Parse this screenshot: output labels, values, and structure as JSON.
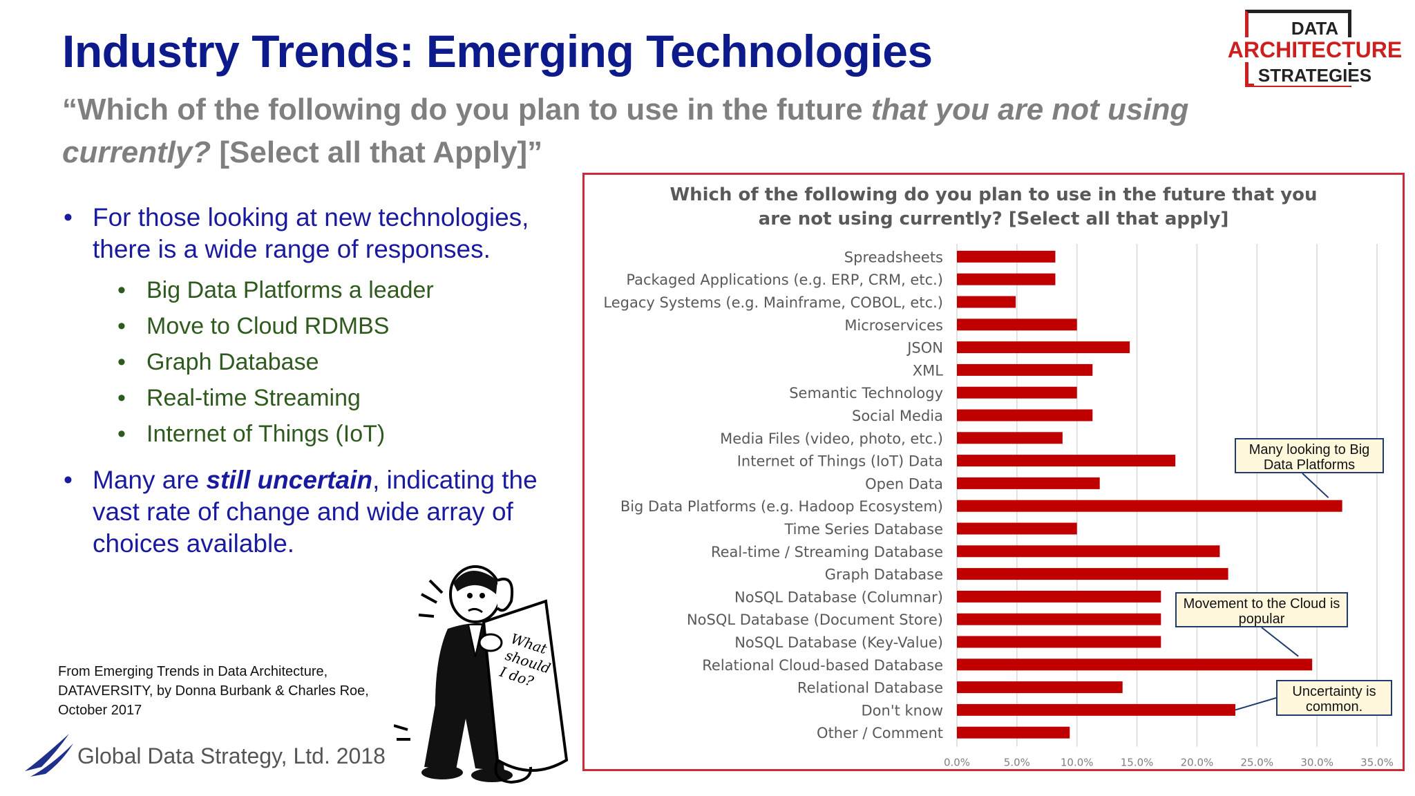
{
  "slide": {
    "title": "Industry Trends: Emerging Technologies",
    "question_part1": "“Which of the following do you plan to use in the future",
    "question_italic": "that you are not using currently?",
    "question_part2": "[Select all that Apply]”"
  },
  "logo": {
    "line1": "DATA",
    "line2": "ARCHITECTURE",
    "line3": "STRATEGIES"
  },
  "bullets": {
    "first": "For those looking at new technologies, there is a wide range of responses.",
    "subitems": [
      "Big Data Platforms a leader",
      "Move to Cloud RDMBS",
      "Graph Database",
      "Real-time Streaming",
      "Internet of Things (IoT)"
    ],
    "second_pre": "Many are ",
    "second_emph": "still uncertain",
    "second_post": ", indicating the vast rate of change and wide array of choices available."
  },
  "cartoon": {
    "sign_line1": "What",
    "sign_line2": "should",
    "sign_line3": "I do?"
  },
  "source_lines": [
    "From Emerging Trends in Data Architecture,",
    "DATAVERSITY, by Donna Burbank & Charles Roe,",
    "October 2017"
  ],
  "footer": {
    "company": "Global Data Strategy, Ltd. 2018"
  },
  "callouts": {
    "big_data": "Many looking to Big Data Platforms",
    "cloud": "Movement to the Cloud is popular",
    "uncertainty": "Uncertainty is common."
  },
  "colors": {
    "title": "#0d1a8c",
    "bar": "#c00000",
    "frame": "#cc2a36",
    "subbullet": "#2f5a1e"
  },
  "chart_data": {
    "type": "bar",
    "orientation": "horizontal",
    "title": "Which of the following do you plan to use in the future that you are not using currently? [Select all that apply]",
    "categories": [
      "Spreadsheets",
      "Packaged Applications (e.g. ERP, CRM, etc.)",
      "Legacy Systems (e.g. Mainframe, COBOL, etc.)",
      "Microservices",
      "JSON",
      "XML",
      "Semantic Technology",
      "Social Media",
      "Media Files (video, photo, etc.)",
      "Internet of Things (IoT) Data",
      "Open Data",
      "Big Data Platforms (e.g. Hadoop Ecosystem)",
      "Time Series Database",
      "Real-time / Streaming Database",
      "Graph Database",
      "NoSQL Database (Columnar)",
      "NoSQL Database (Document Store)",
      "NoSQL Database (Key-Value)",
      "Relational Cloud-based Database",
      "Relational Database",
      "Don't know",
      "Other / Comment"
    ],
    "values": [
      8.2,
      8.2,
      4.9,
      10.0,
      14.4,
      11.3,
      10.0,
      11.3,
      8.8,
      18.2,
      11.9,
      32.1,
      10.0,
      21.9,
      22.6,
      17.0,
      17.0,
      17.0,
      29.6,
      13.8,
      23.2,
      9.4
    ],
    "xlim": [
      0,
      35
    ],
    "x_ticks": [
      "0.0%",
      "5.0%",
      "10.0%",
      "15.0%",
      "20.0%",
      "25.0%",
      "30.0%",
      "35.0%"
    ],
    "grid": true
  }
}
